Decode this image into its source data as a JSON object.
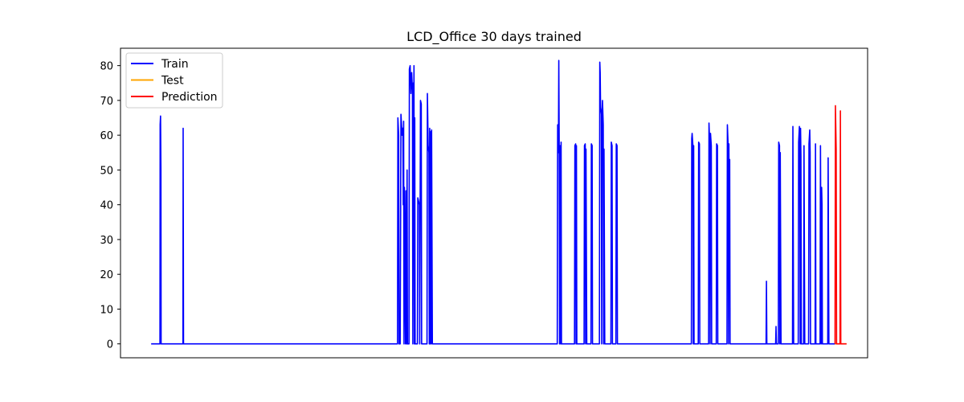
{
  "chart_data": {
    "type": "line",
    "title": "LCD_Office 30 days trained",
    "xlabel": "",
    "ylabel": "",
    "ylim": [
      -4,
      85
    ],
    "yticks": [
      0,
      10,
      20,
      30,
      40,
      50,
      60,
      70,
      80
    ],
    "grid": false,
    "legend_position": "top-left",
    "x_ticks_shown": false,
    "series": [
      {
        "name": "Train",
        "color": "#0000ff",
        "points": [
          [
            0,
            0
          ],
          [
            2.3,
            0
          ],
          [
            2.35,
            63
          ],
          [
            2.45,
            65.5
          ],
          [
            2.55,
            50
          ],
          [
            2.6,
            0
          ],
          [
            8.3,
            0
          ],
          [
            8.35,
            62
          ],
          [
            8.45,
            0
          ],
          [
            64.3,
            0
          ],
          [
            64.4,
            65
          ],
          [
            64.6,
            60
          ],
          [
            64.7,
            0
          ],
          [
            65.0,
            0
          ],
          [
            65.2,
            66
          ],
          [
            65.5,
            60
          ],
          [
            65.7,
            62
          ],
          [
            65.8,
            40
          ],
          [
            65.9,
            64
          ],
          [
            66.0,
            0
          ],
          [
            66.1,
            45
          ],
          [
            66.4,
            0
          ],
          [
            66.5,
            44
          ],
          [
            66.7,
            0
          ],
          [
            66.8,
            50
          ],
          [
            66.9,
            0
          ],
          [
            67.3,
            0
          ],
          [
            67.4,
            79
          ],
          [
            67.6,
            80
          ],
          [
            67.8,
            72
          ],
          [
            68.0,
            78
          ],
          [
            68.2,
            73
          ],
          [
            68.3,
            0
          ],
          [
            68.4,
            75
          ],
          [
            68.5,
            40
          ],
          [
            68.6,
            80
          ],
          [
            68.7,
            0
          ],
          [
            68.8,
            65
          ],
          [
            68.9,
            0
          ],
          [
            69.5,
            0
          ],
          [
            69.6,
            42
          ],
          [
            69.8,
            41
          ],
          [
            70.0,
            40
          ],
          [
            70.1,
            0
          ],
          [
            70.3,
            70
          ],
          [
            70.5,
            69
          ],
          [
            70.6,
            0
          ],
          [
            72.0,
            0
          ],
          [
            72.1,
            72
          ],
          [
            72.3,
            57
          ],
          [
            72.5,
            55
          ],
          [
            72.6,
            0
          ],
          [
            72.7,
            62
          ],
          [
            72.8,
            0
          ],
          [
            72.9,
            61
          ],
          [
            73.1,
            0
          ],
          [
            73.2,
            61.5
          ],
          [
            73.4,
            0
          ],
          [
            106.0,
            0
          ],
          [
            106.1,
            63
          ],
          [
            106.3,
            55
          ],
          [
            106.4,
            81.5
          ],
          [
            106.5,
            58
          ],
          [
            106.6,
            0
          ],
          [
            106.7,
            57
          ],
          [
            106.9,
            0
          ],
          [
            107.0,
            58
          ],
          [
            107.1,
            0
          ],
          [
            110.5,
            0
          ],
          [
            110.6,
            57
          ],
          [
            110.8,
            57.5
          ],
          [
            110.9,
            0
          ],
          [
            111.0,
            57
          ],
          [
            111.1,
            0
          ],
          [
            113.0,
            0
          ],
          [
            113.1,
            57
          ],
          [
            113.3,
            57.5
          ],
          [
            113.4,
            0
          ],
          [
            113.5,
            56
          ],
          [
            113.7,
            0
          ],
          [
            114.8,
            0
          ],
          [
            114.9,
            57.5
          ],
          [
            115.1,
            57
          ],
          [
            115.2,
            0
          ],
          [
            117.0,
            0
          ],
          [
            117.1,
            81
          ],
          [
            117.2,
            78
          ],
          [
            117.3,
            68
          ],
          [
            117.5,
            66
          ],
          [
            117.6,
            0
          ],
          [
            117.7,
            67
          ],
          [
            117.8,
            70
          ],
          [
            118.0,
            63
          ],
          [
            118.1,
            0
          ],
          [
            118.2,
            56
          ],
          [
            118.4,
            0
          ],
          [
            120.0,
            0
          ],
          [
            120.1,
            58
          ],
          [
            120.3,
            57
          ],
          [
            120.4,
            0
          ],
          [
            121.3,
            0
          ],
          [
            121.4,
            57.5
          ],
          [
            121.6,
            57
          ],
          [
            121.7,
            0
          ],
          [
            141.0,
            0
          ],
          [
            141.1,
            59
          ],
          [
            141.2,
            60.5
          ],
          [
            141.4,
            57
          ],
          [
            141.5,
            0
          ],
          [
            141.6,
            57
          ],
          [
            141.7,
            0
          ],
          [
            142.8,
            0
          ],
          [
            142.9,
            58
          ],
          [
            143.1,
            57.5
          ],
          [
            143.2,
            0
          ],
          [
            145.5,
            0
          ],
          [
            145.6,
            63.5
          ],
          [
            145.8,
            57
          ],
          [
            145.9,
            0
          ],
          [
            146.0,
            60.5
          ],
          [
            146.2,
            57
          ],
          [
            146.3,
            0
          ],
          [
            147.5,
            0
          ],
          [
            147.6,
            57.5
          ],
          [
            147.8,
            57
          ],
          [
            147.9,
            0
          ],
          [
            150.3,
            0
          ],
          [
            150.4,
            63
          ],
          [
            150.6,
            57
          ],
          [
            150.7,
            0
          ],
          [
            150.8,
            57.5
          ],
          [
            150.9,
            30
          ],
          [
            151.0,
            53
          ],
          [
            151.1,
            0
          ],
          [
            160.5,
            0
          ],
          [
            160.6,
            18
          ],
          [
            160.7,
            0
          ],
          [
            163.0,
            0
          ],
          [
            163.1,
            5
          ],
          [
            163.2,
            0
          ],
          [
            163.7,
            0
          ],
          [
            163.8,
            58
          ],
          [
            164.0,
            57
          ],
          [
            164.1,
            0
          ],
          [
            164.2,
            55
          ],
          [
            164.4,
            0
          ],
          [
            167.4,
            0
          ],
          [
            167.5,
            62.5
          ],
          [
            167.7,
            0
          ],
          [
            168.9,
            0
          ],
          [
            169.0,
            58
          ],
          [
            169.2,
            62.5
          ],
          [
            169.3,
            55
          ],
          [
            169.4,
            0
          ],
          [
            169.5,
            62
          ],
          [
            169.6,
            54
          ],
          [
            169.7,
            0
          ],
          [
            170.3,
            0
          ],
          [
            170.4,
            57
          ],
          [
            170.6,
            0
          ],
          [
            171.6,
            0
          ],
          [
            171.7,
            57.5
          ],
          [
            171.9,
            61.5
          ],
          [
            172.0,
            55
          ],
          [
            172.1,
            0
          ],
          [
            173.3,
            0
          ],
          [
            173.4,
            57.5
          ],
          [
            173.5,
            0
          ],
          [
            174.6,
            0
          ],
          [
            174.7,
            57
          ],
          [
            174.9,
            0
          ],
          [
            175.0,
            45
          ],
          [
            175.1,
            40
          ],
          [
            175.2,
            0
          ],
          [
            176.6,
            0
          ],
          [
            176.7,
            53.5
          ],
          [
            176.9,
            0
          ],
          [
            178.5,
            0
          ]
        ]
      },
      {
        "name": "Test",
        "color": "#ffa500",
        "points": [
          [
            178.5,
            0
          ],
          [
            181.5,
            0
          ]
        ]
      },
      {
        "name": "Prediction",
        "color": "#ff0000",
        "points": [
          [
            178.5,
            0
          ],
          [
            178.6,
            68.5
          ],
          [
            178.8,
            56
          ],
          [
            178.9,
            0
          ],
          [
            179.8,
            0
          ],
          [
            179.9,
            67
          ],
          [
            180.0,
            0
          ],
          [
            181.5,
            0
          ]
        ]
      }
    ],
    "xlim": [
      -8,
      187
    ]
  }
}
